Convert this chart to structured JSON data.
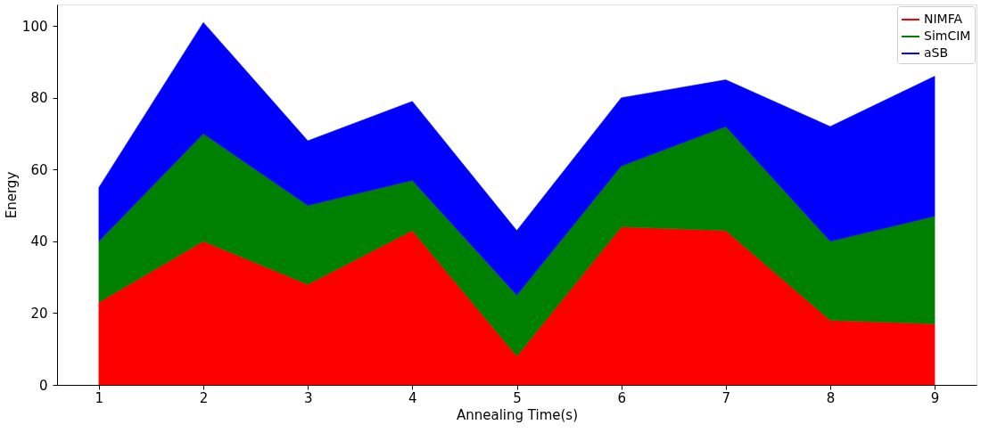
{
  "chart_data": {
    "type": "area",
    "stacked": true,
    "xlabel": "Annealing Time(s)",
    "ylabel": "Energy",
    "x": [
      1,
      2,
      3,
      4,
      5,
      6,
      7,
      8,
      9
    ],
    "xlim": [
      0.6,
      9.4
    ],
    "xticks": [
      1,
      2,
      3,
      4,
      5,
      6,
      7,
      8,
      9
    ],
    "ylim": [
      0,
      106
    ],
    "yticks": [
      0,
      20,
      40,
      60,
      80,
      100
    ],
    "grid": false,
    "legend": "top right",
    "series": [
      {
        "name": "NIMFA",
        "color": "#ff0000",
        "values": [
          23,
          40,
          28,
          43,
          8,
          44,
          43,
          18,
          17
        ]
      },
      {
        "name": "SimCIM",
        "color": "#008000",
        "values": [
          17,
          30,
          22,
          14,
          17,
          17,
          29,
          22,
          30
        ]
      },
      {
        "name": "aSB",
        "color": "#0000ff",
        "values": [
          15,
          31,
          18,
          22,
          18,
          19,
          13,
          32,
          39
        ]
      }
    ]
  }
}
